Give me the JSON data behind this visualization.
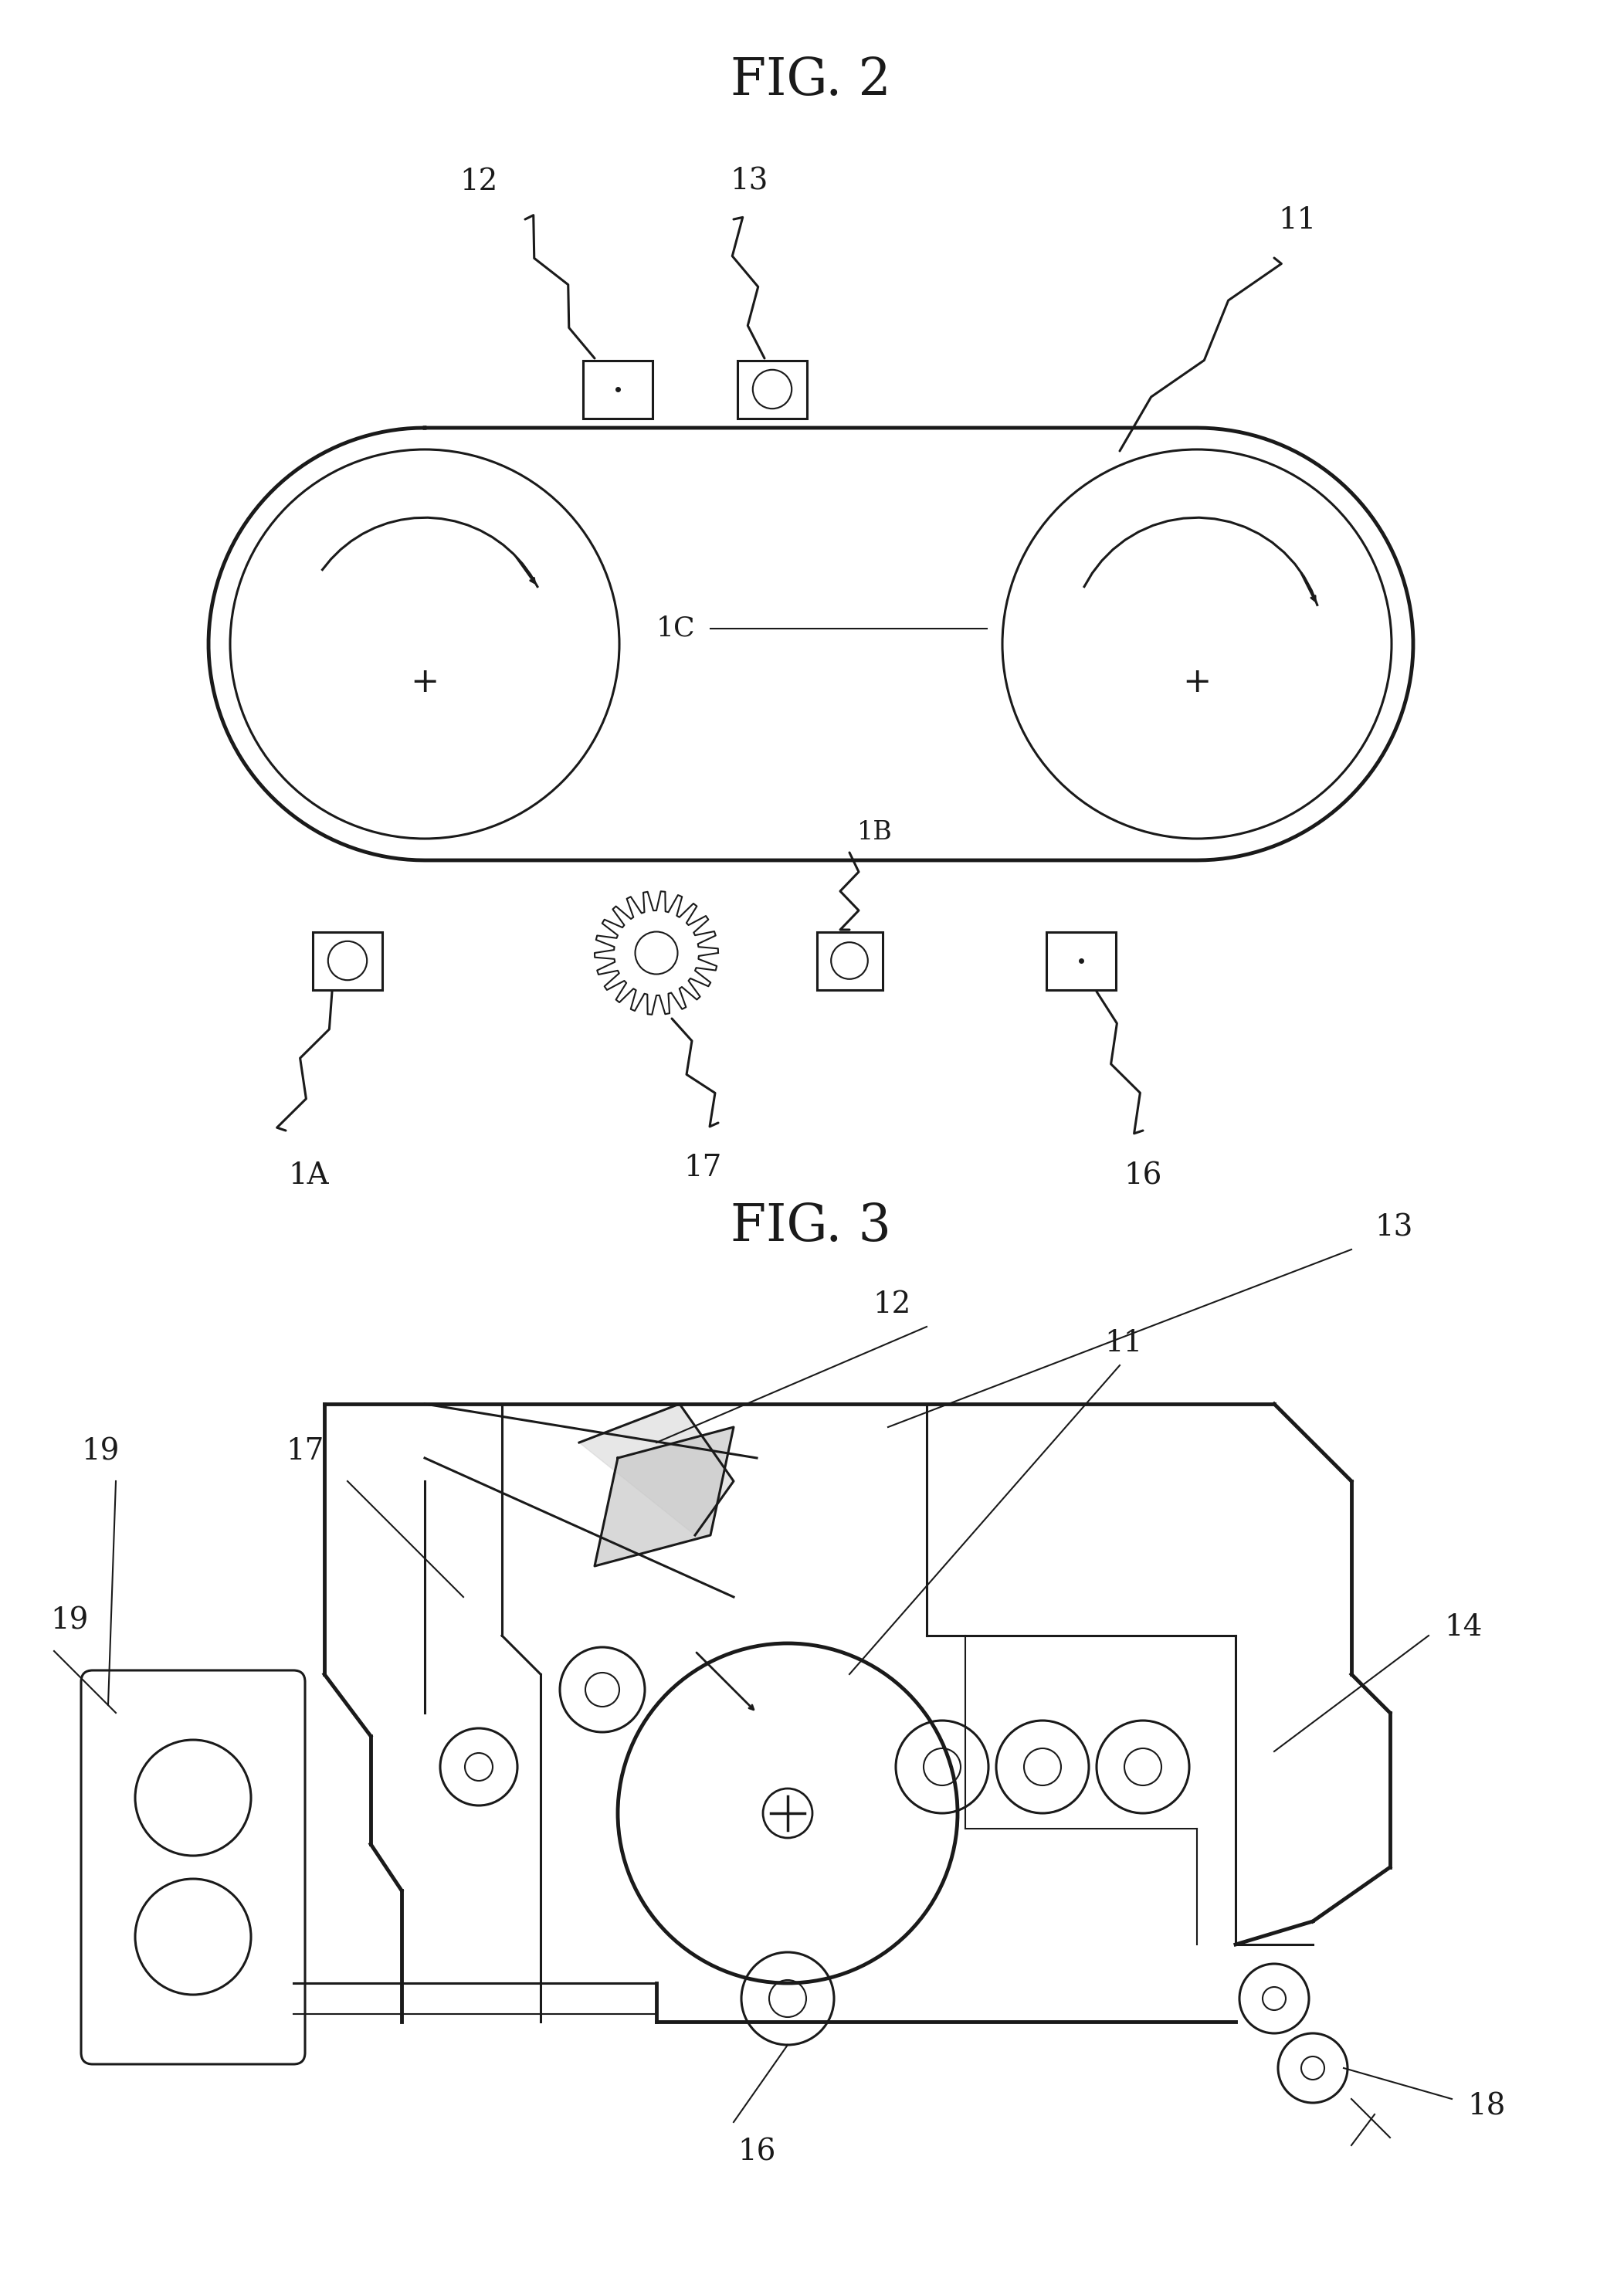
{
  "fig2_title": "FIG. 2",
  "fig3_title": "FIG. 3",
  "background_color": "#ffffff",
  "line_color": "#1a1a1a",
  "title_fontsize": 48,
  "label_fontsize": 28
}
